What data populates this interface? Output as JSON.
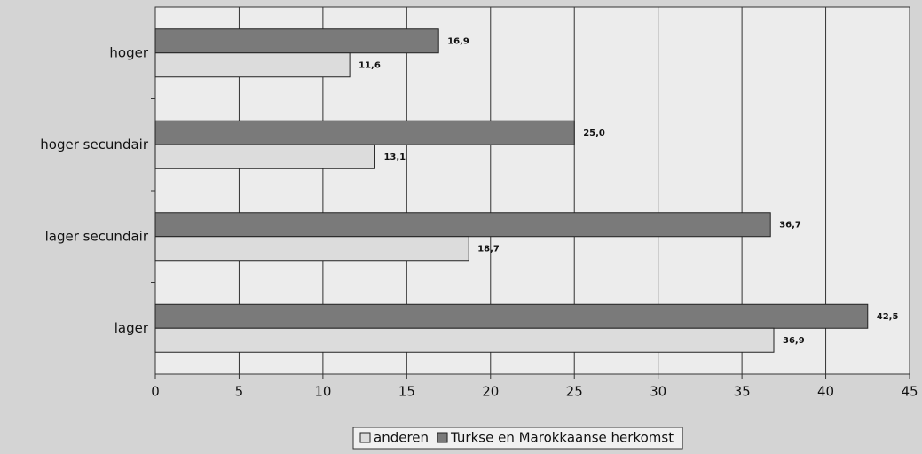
{
  "chart_data": {
    "type": "bar",
    "orientation": "horizontal",
    "categories": [
      "hoger",
      "hoger secundair",
      "lager secundair",
      "lager"
    ],
    "series": [
      {
        "name": "anderen",
        "color": "#dcdcdc",
        "values": [
          11.6,
          13.1,
          18.7,
          36.9
        ],
        "value_labels": [
          "11,6",
          "13,1",
          "18,7",
          "36,9"
        ]
      },
      {
        "name": "Turkse en Marokkaanse herkomst",
        "color": "#7a7a7a",
        "values": [
          16.9,
          25.0,
          36.7,
          42.5
        ],
        "value_labels": [
          "16,9",
          "25,0",
          "36,7",
          "42,5"
        ]
      }
    ],
    "xlim": [
      0,
      45
    ],
    "xticks": [
      0,
      5,
      10,
      15,
      20,
      25,
      30,
      35,
      40,
      45
    ],
    "grid": true,
    "legend": "bottom"
  }
}
